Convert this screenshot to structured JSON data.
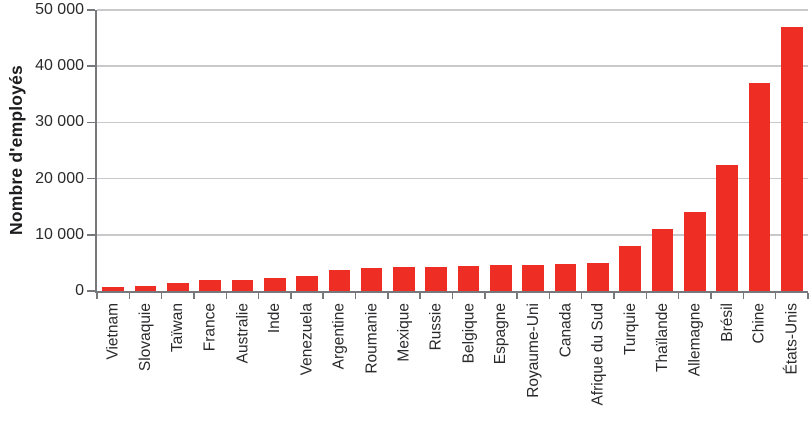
{
  "chart_data": {
    "type": "bar",
    "title": "",
    "xlabel": "",
    "ylabel": "Nombre d'employés",
    "ylim": [
      0,
      50000
    ],
    "ytick_interval": 10000,
    "ytick_labels": [
      "0",
      "10 000",
      "20 000",
      "30 000",
      "40 000",
      "50 000"
    ],
    "grid": "horizontal-gridlines-on",
    "legend": "none",
    "categories": [
      "Vietnam",
      "Slovaquie",
      "Taïwan",
      "France",
      "Australie",
      "Inde",
      "Venezuela",
      "Argentine",
      "Roumanie",
      "Mexique",
      "Russie",
      "Belgique",
      "Espagne",
      "Royaume-Uni",
      "Canada",
      "Afrique du Sud",
      "Turquie",
      "Thaïlande",
      "Allemagne",
      "Brésil",
      "Chine",
      "États-Unis"
    ],
    "values": [
      800,
      950,
      1400,
      1900,
      2000,
      2300,
      2600,
      3800,
      4100,
      4200,
      4300,
      4400,
      4600,
      4700,
      4800,
      4900,
      8000,
      11000,
      14000,
      22400,
      37000,
      46900
    ]
  },
  "colors": {
    "bar": "#ee2e24",
    "gridline": "#c9c9cb",
    "axis": "#77787c",
    "text": "#2a2a2c",
    "background": "#ffffff"
  }
}
